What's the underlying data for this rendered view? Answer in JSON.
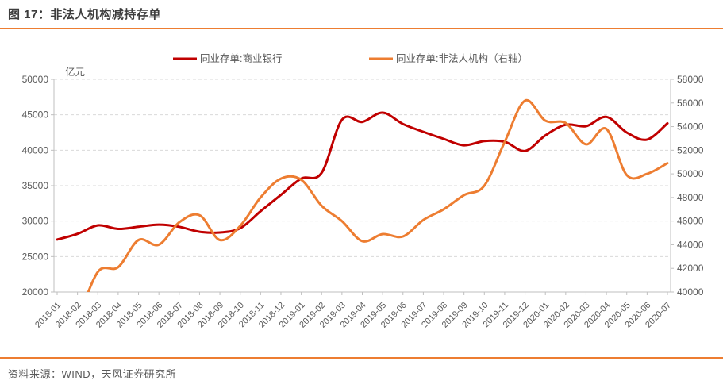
{
  "page": {
    "title": "图 17：非法人机构减持存单",
    "source": "资料来源：WIND，天风证券研究所",
    "accent_color": "#ED7D31",
    "background": "#ffffff"
  },
  "chart_data": {
    "type": "line",
    "title": "图 17：非法人机构减持存单",
    "legend_position": "top",
    "grid": "horizontal-dashed",
    "smoothed": true,
    "left_axis": {
      "unit_label": "亿元",
      "min": 20000,
      "max": 50000,
      "step": 5000,
      "ticks": [
        50000,
        45000,
        40000,
        35000,
        30000,
        25000,
        20000
      ]
    },
    "right_axis": {
      "min": 40000,
      "max": 58000,
      "step": 2000,
      "ticks": [
        58000,
        56000,
        54000,
        52000,
        50000,
        48000,
        46000,
        44000,
        42000,
        40000
      ]
    },
    "categories": [
      "2018-01",
      "2018-02",
      "2018-03",
      "2018-04",
      "2018-05",
      "2018-06",
      "2018-07",
      "2018-08",
      "2018-09",
      "2018-10",
      "2018-11",
      "2018-12",
      "2019-01",
      "2019-02",
      "2019-03",
      "2019-04",
      "2019-05",
      "2019-06",
      "2019-07",
      "2019-08",
      "2019-09",
      "2019-10",
      "2019-11",
      "2019-12",
      "2020-01",
      "2020-02",
      "2020-03",
      "2020-04",
      "2020-05",
      "2020-06",
      "2020-07"
    ],
    "series": [
      {
        "name": "同业存单:商业银行",
        "axis": "left",
        "color": "#C00000",
        "values": [
          27400,
          28200,
          29400,
          28900,
          29200,
          29500,
          29200,
          28500,
          28400,
          29000,
          31400,
          33700,
          36000,
          36800,
          44300,
          44000,
          45300,
          43700,
          42600,
          41600,
          40700,
          41300,
          41200,
          39900,
          42100,
          43600,
          43400,
          44700,
          42500,
          41500,
          43800
        ]
      },
      {
        "name": "同业存单:非法人机构（右轴）",
        "axis": "right",
        "color": "#ED7D31",
        "values": [
          null,
          37500,
          41700,
          42100,
          44400,
          44000,
          45900,
          46500,
          44400,
          45600,
          48000,
          49600,
          49500,
          47300,
          46000,
          44300,
          44900,
          44700,
          46100,
          47000,
          48200,
          49000,
          52700,
          56200,
          54500,
          54300,
          52500,
          53800,
          49900,
          50000,
          50900
        ]
      }
    ]
  }
}
